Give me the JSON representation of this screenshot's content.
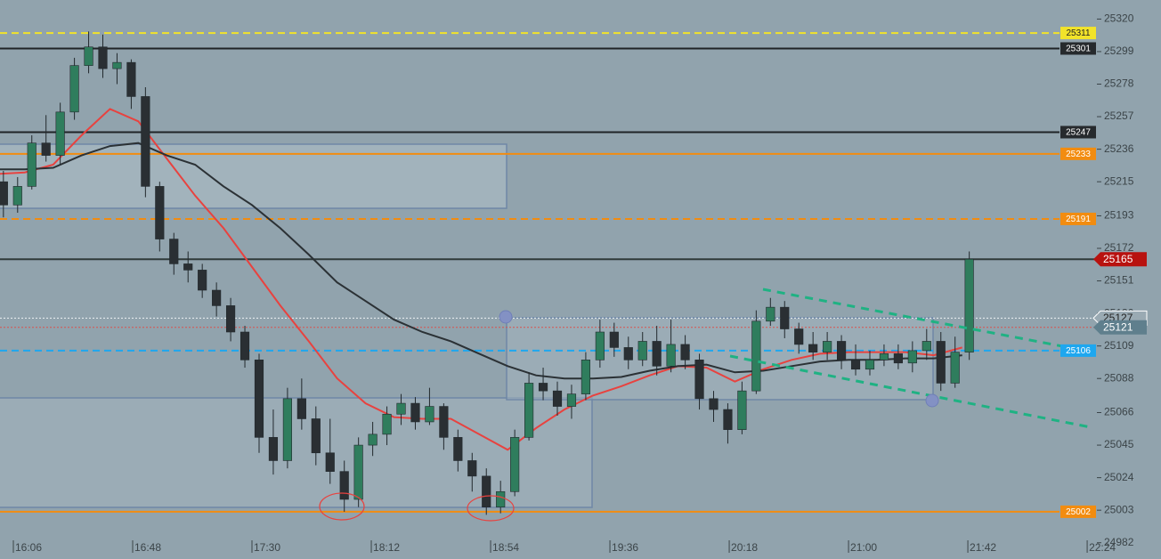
{
  "chart_data": {
    "type": "candlestick",
    "xlim": [
      961.3,
      1346.8
    ],
    "ylim": [
      24971.5,
      25332.3
    ],
    "xticks": [
      {
        "value": 966,
        "label": "16:06"
      },
      {
        "value": 1008,
        "label": "16:48"
      },
      {
        "value": 1050,
        "label": "17:30"
      },
      {
        "value": 1092,
        "label": "18:12"
      },
      {
        "value": 1134,
        "label": "18:54"
      },
      {
        "value": 1176,
        "label": "19:36"
      },
      {
        "value": 1218,
        "label": "20:18"
      },
      {
        "value": 1260,
        "label": "21:00"
      },
      {
        "value": 1302,
        "label": "21:42"
      },
      {
        "value": 1344,
        "label": "22:24"
      }
    ],
    "yticks": [
      25320,
      25299,
      25278,
      25257,
      25236,
      25215,
      25193,
      25172,
      25151,
      25130,
      25109,
      25088,
      25066,
      25045,
      25024,
      25003,
      24982
    ],
    "up_color": "#2f7d5d",
    "down_color": "#2a2f33",
    "x": [
      960,
      965,
      970,
      975,
      980,
      985,
      990,
      995,
      1000,
      1005,
      1010,
      1015,
      1020,
      1025,
      1030,
      1035,
      1040,
      1045,
      1050,
      1055,
      1060,
      1065,
      1070,
      1075,
      1080,
      1085,
      1090,
      1095,
      1100,
      1105,
      1110,
      1115,
      1120,
      1125,
      1130,
      1135,
      1140,
      1145,
      1150,
      1155,
      1160,
      1165,
      1170,
      1175,
      1180,
      1185,
      1190,
      1195,
      1200,
      1205,
      1210,
      1215,
      1220,
      1225,
      1230,
      1235,
      1240,
      1245,
      1250,
      1255,
      1260,
      1265,
      1270,
      1275,
      1280,
      1285,
      1290,
      1295,
      1300
    ],
    "open": [
      25215,
      25200,
      25212,
      25240,
      25232,
      25260,
      25290,
      25302,
      25288,
      25292,
      25270,
      25212,
      25178,
      25162,
      25158,
      25145,
      25135,
      25118,
      25100,
      25050,
      25035,
      25075,
      25062,
      25040,
      25028,
      25010,
      25045,
      25052,
      25065,
      25072,
      25060,
      25070,
      25050,
      25035,
      25025,
      25005,
      25015,
      25050,
      25085,
      25080,
      25070,
      25078,
      25100,
      25118,
      25108,
      25100,
      25112,
      25096,
      25110,
      25100,
      25075,
      25068,
      25055,
      25080,
      25125,
      25134,
      25120,
      25110,
      25105,
      25112,
      25100,
      25094,
      25100,
      25104,
      25098,
      25106,
      25112,
      25085,
      25105
    ],
    "high": [
      25222,
      25218,
      25245,
      25258,
      25266,
      25295,
      25312,
      25310,
      25298,
      25294,
      25276,
      25215,
      25182,
      25170,
      25162,
      25150,
      25140,
      25122,
      25104,
      25068,
      25082,
      25088,
      25070,
      25062,
      25035,
      25050,
      25060,
      25070,
      25078,
      25076,
      25082,
      25072,
      25055,
      25040,
      25030,
      25022,
      25055,
      25092,
      25095,
      25086,
      25084,
      25105,
      25126,
      25124,
      25115,
      25118,
      25122,
      25126,
      25116,
      25104,
      25080,
      25072,
      25086,
      25132,
      25140,
      25138,
      25124,
      25118,
      25118,
      25116,
      25110,
      25106,
      25110,
      25110,
      25112,
      25120,
      25118,
      25115,
      25170
    ],
    "low": [
      25192,
      25195,
      25210,
      25228,
      25226,
      25255,
      25285,
      25282,
      25278,
      25262,
      25205,
      25170,
      25155,
      25150,
      25140,
      25128,
      25112,
      25095,
      25040,
      25026,
      25030,
      25055,
      25032,
      25020,
      25002,
      25005,
      25038,
      25045,
      25058,
      25055,
      25058,
      25042,
      25028,
      25015,
      25000,
      25001,
      25012,
      25048,
      25074,
      25064,
      25062,
      25074,
      25095,
      25102,
      25094,
      25096,
      25090,
      25092,
      25094,
      25068,
      25060,
      25046,
      25052,
      25078,
      25122,
      25114,
      25104,
      25100,
      25100,
      25094,
      25090,
      25090,
      25096,
      25094,
      25092,
      25100,
      25080,
      25082,
      25100
    ],
    "close": [
      25200,
      25212,
      25240,
      25232,
      25260,
      25290,
      25302,
      25288,
      25292,
      25270,
      25212,
      25178,
      25162,
      25158,
      25145,
      25135,
      25118,
      25100,
      25050,
      25035,
      25075,
      25062,
      25040,
      25028,
      25010,
      25045,
      25052,
      25065,
      25072,
      25060,
      25070,
      25050,
      25035,
      25025,
      25005,
      25015,
      25050,
      25085,
      25080,
      25070,
      25078,
      25100,
      25118,
      25108,
      25100,
      25112,
      25096,
      25110,
      25100,
      25075,
      25068,
      25055,
      25080,
      25125,
      25134,
      25120,
      25110,
      25105,
      25112,
      25100,
      25094,
      25100,
      25104,
      25098,
      25106,
      25112,
      25085,
      25105,
      25165
    ],
    "lines": [
      {
        "color": "#e8423f",
        "x": [
          960,
          970,
          980,
          990,
          1000,
          1010,
          1020,
          1030,
          1040,
          1050,
          1060,
          1070,
          1080,
          1090,
          1100,
          1110,
          1120,
          1130,
          1140,
          1150,
          1160,
          1170,
          1180,
          1190,
          1200,
          1210,
          1220,
          1230,
          1240,
          1250,
          1260,
          1270,
          1280,
          1290,
          1300
        ],
        "values": [
          25220,
          25221,
          25226,
          25245,
          25262,
          25254,
          25230,
          25206,
          25185,
          25160,
          25135,
          25112,
          25088,
          25072,
          25063,
          25062,
          25062,
          25052,
          25042,
          25056,
          25068,
          25077,
          25083,
          25090,
          25096,
          25095,
          25086,
          25094,
          25100,
          25104,
          25105,
          25105,
          25105,
          25103,
          25108
        ]
      },
      {
        "color": "#2b3135",
        "x": [
          960,
          970,
          980,
          990,
          1000,
          1010,
          1020,
          1030,
          1040,
          1050,
          1060,
          1070,
          1080,
          1090,
          1100,
          1110,
          1120,
          1130,
          1140,
          1150,
          1160,
          1170,
          1180,
          1190,
          1200,
          1210,
          1220,
          1230,
          1240,
          1250,
          1260,
          1270,
          1280,
          1290,
          1300
        ],
        "values": [
          25223,
          25223,
          25224,
          25232,
          25238,
          25240,
          25232,
          25226,
          25212,
          25200,
          25185,
          25168,
          25150,
          25138,
          25126,
          25118,
          25112,
          25104,
          25096,
          25090,
          25088,
          25088,
          25089,
          25093,
          25096,
          25097,
          25092,
          25093,
          25096,
          25099,
          25100,
          25100,
          25101,
          25101,
          25103
        ]
      }
    ],
    "levels": [
      {
        "value": 25311,
        "color": "#f2e32a",
        "style": "dashed",
        "label_bg": "#f2e32a",
        "label_fg": "#222",
        "label_pos": "inside"
      },
      {
        "value": 25301,
        "color": "#1f2326",
        "style": "solid",
        "label_bg": "#262a2d",
        "label_fg": "#fff",
        "label_pos": "inside"
      },
      {
        "value": 25247,
        "color": "#1f2326",
        "style": "solid",
        "label_bg": "#262a2d",
        "label_fg": "#fff",
        "label_pos": "inside"
      },
      {
        "value": 25233,
        "color": "#f28c10",
        "style": "solid",
        "label_bg": "#f28c10",
        "label_fg": "#fff",
        "label_pos": "inside"
      },
      {
        "value": 25191,
        "color": "#f28c10",
        "style": "dashed",
        "label_bg": "#f28c10",
        "label_fg": "#fff",
        "label_pos": "inside"
      },
      {
        "value": 25165,
        "color": "#2f3a3a",
        "style": "solid",
        "label_bg": "#b8120f",
        "label_fg": "#fff",
        "label_pos": "axis"
      },
      {
        "value": 25127,
        "color": "#eef2f4",
        "style": "dotted",
        "label_bg": "#9aaab3",
        "label_fg": "#222",
        "label_pos": "axis"
      },
      {
        "value": 25121,
        "color": "#d9534f",
        "style": "dotted",
        "label_bg": "#5f7f8d",
        "label_fg": "#fff",
        "label_pos": "axis"
      },
      {
        "value": 25106,
        "color": "#1ea7ef",
        "style": "dashed",
        "label_bg": "#1ea7ef",
        "label_fg": "#fff",
        "label_pos": "inside"
      },
      {
        "value": 25002,
        "color": "#f28c10",
        "style": "solid",
        "label_bg": "#f28c10",
        "label_fg": "#fff",
        "label_pos": "inside"
      }
    ]
  }
}
